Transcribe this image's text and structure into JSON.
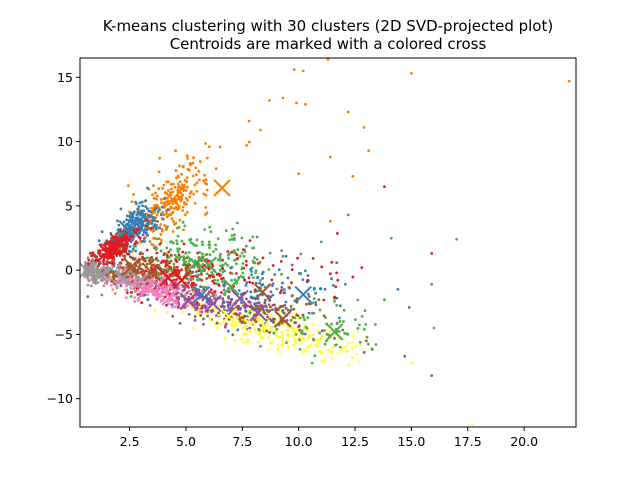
{
  "chart_data": {
    "type": "scatter",
    "title": "K-means clustering with 30 clusters (2D SVD-projected plot)",
    "subtitle": "Centroids are marked with a colored cross",
    "xlabel": "",
    "ylabel": "",
    "xlim": [
      0.3,
      22.3
    ],
    "ylim": [
      -12.2,
      16.5
    ],
    "xticks": [
      2.5,
      5.0,
      7.5,
      10.0,
      12.5,
      15.0,
      17.5,
      20.0
    ],
    "xtick_labels": [
      "2.5",
      "5.0",
      "7.5",
      "10.0",
      "12.5",
      "15.0",
      "17.5",
      "20.0"
    ],
    "yticks": [
      -10,
      -5,
      0,
      5,
      10,
      15
    ],
    "ytick_labels": [
      "−10",
      "−5",
      "0",
      "5",
      "10",
      "15"
    ],
    "grid": false,
    "legend": "none",
    "palette": [
      "#e41a1c",
      "#377eb8",
      "#4daf4a",
      "#984ea3",
      "#ff7f00",
      "#ffff33",
      "#a65628",
      "#f781bf",
      "#999999"
    ],
    "centroids": [
      {
        "x": 6.6,
        "y": 6.4,
        "color": "#ff7f00"
      },
      {
        "x": 4.4,
        "y": 5.5,
        "color": "#ff7f00"
      },
      {
        "x": 2.8,
        "y": 3.6,
        "color": "#377eb8"
      },
      {
        "x": 2.4,
        "y": 3.2,
        "color": "#377eb8"
      },
      {
        "x": 1.5,
        "y": 1.4,
        "color": "#e41a1c"
      },
      {
        "x": 2.0,
        "y": 2.2,
        "color": "#e41a1c"
      },
      {
        "x": 0.6,
        "y": 0.0,
        "color": "#999999"
      },
      {
        "x": 1.2,
        "y": -0.4,
        "color": "#999999"
      },
      {
        "x": 2.2,
        "y": -0.6,
        "color": "#999999"
      },
      {
        "x": 3.0,
        "y": -0.9,
        "color": "#999999"
      },
      {
        "x": 2.6,
        "y": 0.3,
        "color": "#a65628"
      },
      {
        "x": 3.5,
        "y": -0.2,
        "color": "#a65628"
      },
      {
        "x": 4.0,
        "y": -1.6,
        "color": "#f781bf"
      },
      {
        "x": 3.3,
        "y": -1.4,
        "color": "#f781bf"
      },
      {
        "x": 4.8,
        "y": -0.8,
        "color": "#e41a1c"
      },
      {
        "x": 4.2,
        "y": -0.6,
        "color": "#e41a1c"
      },
      {
        "x": 5.4,
        "y": 0.5,
        "color": "#4daf4a"
      },
      {
        "x": 6.0,
        "y": 0.4,
        "color": "#4daf4a"
      },
      {
        "x": 5.1,
        "y": -2.4,
        "color": "#984ea3"
      },
      {
        "x": 6.2,
        "y": -2.6,
        "color": "#984ea3"
      },
      {
        "x": 5.7,
        "y": -1.9,
        "color": "#377eb8"
      },
      {
        "x": 7.0,
        "y": -1.3,
        "color": "#4daf4a"
      },
      {
        "x": 7.4,
        "y": -2.2,
        "color": "#984ea3"
      },
      {
        "x": 8.4,
        "y": -1.7,
        "color": "#a65628"
      },
      {
        "x": 8.2,
        "y": -3.3,
        "color": "#984ea3"
      },
      {
        "x": 9.3,
        "y": -3.8,
        "color": "#a65628"
      },
      {
        "x": 10.2,
        "y": -1.9,
        "color": "#377eb8"
      },
      {
        "x": 11.6,
        "y": -4.8,
        "color": "#4daf4a"
      },
      {
        "x": 6.9,
        "y": -3.6,
        "color": "#ffff33"
      },
      {
        "x": 4.3,
        "y": -2.1,
        "color": "#f781bf"
      }
    ],
    "groups": [
      {
        "color": "#ff7f00",
        "count": 260,
        "cx": 4.3,
        "cy": 5.3,
        "sx": 0.9,
        "sy": 1.2,
        "ax": 1,
        "ay": 1.2
      },
      {
        "color": "#377eb8",
        "count": 280,
        "cx": 2.6,
        "cy": 3.1,
        "sx": 0.6,
        "sy": 0.8,
        "ax": 1,
        "ay": 1.25
      },
      {
        "color": "#e41a1c",
        "count": 240,
        "cx": 1.8,
        "cy": 1.6,
        "sx": 0.5,
        "sy": 0.5,
        "ax": 1,
        "ay": 1.2
      },
      {
        "color": "#e41a1c",
        "count": 220,
        "cx": 4.3,
        "cy": -0.4,
        "sx": 1.2,
        "sy": 0.9,
        "ax": 0,
        "ay": 0
      },
      {
        "color": "#4daf4a",
        "count": 260,
        "cx": 5.8,
        "cy": 0.6,
        "sx": 1.6,
        "sy": 1.4,
        "ax": 0,
        "ay": 0
      },
      {
        "color": "#999999",
        "count": 300,
        "cx": 1.4,
        "cy": -0.3,
        "sx": 0.9,
        "sy": 0.35,
        "ax": 1,
        "ay": -0.25
      },
      {
        "color": "#a65628",
        "count": 160,
        "cx": 3.3,
        "cy": 0.1,
        "sx": 1.0,
        "sy": 0.6,
        "ax": 0,
        "ay": 0
      },
      {
        "color": "#f781bf",
        "count": 220,
        "cx": 3.8,
        "cy": -1.6,
        "sx": 1.1,
        "sy": 0.5,
        "ax": 1,
        "ay": -0.35
      },
      {
        "color": "#984ea3",
        "count": 200,
        "cx": 6.6,
        "cy": -2.8,
        "sx": 1.5,
        "sy": 0.7,
        "ax": 1,
        "ay": -0.35
      },
      {
        "color": "#ffff33",
        "count": 260,
        "cx": 8.8,
        "cy": -4.6,
        "sx": 2.0,
        "sy": 0.8,
        "ax": 1,
        "ay": -0.45
      },
      {
        "color": "#377eb8",
        "count": 120,
        "cx": 8.6,
        "cy": -1.8,
        "sx": 1.9,
        "sy": 1.1,
        "ax": 0,
        "ay": 0
      },
      {
        "color": "#a65628",
        "count": 90,
        "cx": 9.0,
        "cy": -3.2,
        "sx": 1.6,
        "sy": 0.9,
        "ax": 0,
        "ay": 0
      },
      {
        "color": "#4daf4a",
        "count": 70,
        "cx": 11.2,
        "cy": -4.5,
        "sx": 1.3,
        "sy": 1.0,
        "ax": 0,
        "ay": 0
      },
      {
        "color": "#e41a1c",
        "count": 60,
        "cx": 7.8,
        "cy": 0.3,
        "sx": 2.2,
        "sy": 1.5,
        "ax": 0,
        "ay": 0
      }
    ],
    "outliers": [
      {
        "x": 22.0,
        "y": 14.7,
        "color": "#ff7f00"
      },
      {
        "x": 15.0,
        "y": 15.3,
        "color": "#ff7f00"
      },
      {
        "x": 10.2,
        "y": 15.5,
        "color": "#ff7f00"
      },
      {
        "x": 9.8,
        "y": 15.6,
        "color": "#ff7f00"
      },
      {
        "x": 11.3,
        "y": 16.4,
        "color": "#ff7f00"
      },
      {
        "x": 9.3,
        "y": 13.4,
        "color": "#ff7f00"
      },
      {
        "x": 9.9,
        "y": 13.0,
        "color": "#ff7f00"
      },
      {
        "x": 10.3,
        "y": 12.9,
        "color": "#ff7f00"
      },
      {
        "x": 12.2,
        "y": 12.3,
        "color": "#ff7f00"
      },
      {
        "x": 12.9,
        "y": 11.1,
        "color": "#ff7f00"
      },
      {
        "x": 8.7,
        "y": 13.2,
        "color": "#ff7f00"
      },
      {
        "x": 7.8,
        "y": 11.6,
        "color": "#ff7f00"
      },
      {
        "x": 8.3,
        "y": 10.9,
        "color": "#ff7f00"
      },
      {
        "x": 7.7,
        "y": 9.7,
        "color": "#ff7f00"
      },
      {
        "x": 11.4,
        "y": 8.8,
        "color": "#ff7f00"
      },
      {
        "x": 13.1,
        "y": 9.3,
        "color": "#ff7f00"
      },
      {
        "x": 12.4,
        "y": 7.3,
        "color": "#ff7f00"
      },
      {
        "x": 10.0,
        "y": 7.5,
        "color": "#ff7f00"
      },
      {
        "x": 13.8,
        "y": 6.5,
        "color": "#e41a1c"
      },
      {
        "x": 11.4,
        "y": 3.8,
        "color": "#ff7f00"
      },
      {
        "x": 12.2,
        "y": 4.3,
        "color": "#4daf4a"
      },
      {
        "x": 15.9,
        "y": 1.3,
        "color": "#e41a1c"
      },
      {
        "x": 17.0,
        "y": 2.4,
        "color": "#4daf4a"
      },
      {
        "x": 15.9,
        "y": -1.1,
        "color": "#4daf4a"
      },
      {
        "x": 14.4,
        "y": -1.5,
        "color": "#377eb8"
      },
      {
        "x": 14.9,
        "y": -2.9,
        "color": "#984ea3"
      },
      {
        "x": 16.0,
        "y": -4.5,
        "color": "#4daf4a"
      },
      {
        "x": 14.7,
        "y": -6.7,
        "color": "#377eb8"
      },
      {
        "x": 15.0,
        "y": -7.2,
        "color": "#ffff33"
      },
      {
        "x": 15.9,
        "y": -8.2,
        "color": "#984ea3"
      },
      {
        "x": 13.0,
        "y": -5.5,
        "color": "#a65628"
      },
      {
        "x": 12.9,
        "y": -6.4,
        "color": "#984ea3"
      },
      {
        "x": 17.7,
        "y": -12.0,
        "color": "#ffff33"
      },
      {
        "x": 13.8,
        "y": -2.3,
        "color": "#4daf4a"
      },
      {
        "x": 12.8,
        "y": 0.2,
        "color": "#e41a1c"
      },
      {
        "x": 11.0,
        "y": 2.2,
        "color": "#4daf4a"
      }
    ]
  }
}
